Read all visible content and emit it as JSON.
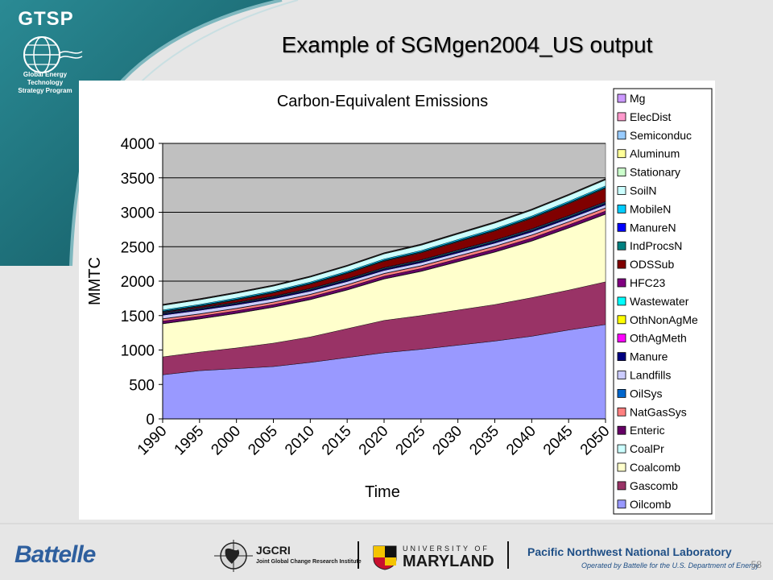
{
  "slide": {
    "title": "Example of SGMgen2004_US output",
    "page_number": "58"
  },
  "logo": {
    "name": "GTSP",
    "subtitle_line1": "Global Energy Technology",
    "subtitle_line2": "Strategy Program"
  },
  "footer": {
    "battelle": "Battelle",
    "jgcri": "JGCRI",
    "jgcri_sub": "Joint Global Change Research Institute",
    "umd_top": "UNIVERSITY OF",
    "umd_name": "MARYLAND",
    "pnnl": "Pacific Northwest National Laboratory",
    "pnnl_sub": "Operated by Battelle for the U.S. Department of Energy"
  },
  "colors": {
    "banner": "#1e6e78",
    "plot_background": "#c0c0c0"
  },
  "chart_data": {
    "type": "area",
    "stacked": true,
    "title": "Carbon-Equivalent Emissions",
    "xlabel": "Time",
    "ylabel": "MMTC",
    "ylim": [
      0,
      4000
    ],
    "yticks": [
      0,
      500,
      1000,
      1500,
      2000,
      2500,
      3000,
      3500,
      4000
    ],
    "grid": true,
    "legend_position": "right",
    "legend_order": "top-to-bottom reverse of stack",
    "x": [
      "1990",
      "1995",
      "2000",
      "2005",
      "2010",
      "2015",
      "2020",
      "2025",
      "2030",
      "2035",
      "2040",
      "2045",
      "2050"
    ],
    "series": [
      {
        "name": "Oilcomb",
        "color": "#9999ff",
        "values": [
          640,
          700,
          730,
          760,
          820,
          890,
          960,
          1010,
          1070,
          1130,
          1200,
          1290,
          1370
        ]
      },
      {
        "name": "Gascomb",
        "color": "#993366",
        "values": [
          260,
          270,
          300,
          340,
          370,
          420,
          470,
          490,
          510,
          530,
          560,
          580,
          620
        ]
      },
      {
        "name": "Coalcomb",
        "color": "#ffffcc",
        "values": [
          480,
          480,
          500,
          520,
          540,
          560,
          600,
          640,
          700,
          760,
          820,
          900,
          980
        ]
      },
      {
        "name": "CoalPr",
        "color": "#ccffff",
        "values": [
          5,
          5,
          5,
          5,
          5,
          5,
          5,
          5,
          5,
          5,
          5,
          5,
          5
        ]
      },
      {
        "name": "Enteric",
        "color": "#660066",
        "values": [
          35,
          35,
          35,
          35,
          36,
          36,
          37,
          38,
          39,
          40,
          41,
          42,
          43
        ]
      },
      {
        "name": "NatGasSys",
        "color": "#ff8080",
        "values": [
          30,
          31,
          32,
          33,
          34,
          35,
          36,
          37,
          38,
          39,
          40,
          41,
          42
        ]
      },
      {
        "name": "OilSys",
        "color": "#0066cc",
        "values": [
          5,
          5,
          5,
          5,
          5,
          5,
          5,
          5,
          5,
          5,
          5,
          5,
          5
        ]
      },
      {
        "name": "Landfills",
        "color": "#ccccff",
        "values": [
          50,
          50,
          48,
          45,
          44,
          43,
          42,
          42,
          42,
          42,
          42,
          42,
          42
        ]
      },
      {
        "name": "Manure",
        "color": "#000080",
        "values": [
          15,
          15,
          16,
          16,
          17,
          17,
          18,
          18,
          19,
          19,
          20,
          20,
          21
        ]
      },
      {
        "name": "OthAgMeth",
        "color": "#ff00ff",
        "values": [
          5,
          5,
          5,
          5,
          5,
          5,
          5,
          5,
          5,
          5,
          5,
          5,
          5
        ]
      },
      {
        "name": "OthNonAgMe",
        "color": "#ffff00",
        "values": [
          3,
          3,
          3,
          3,
          3,
          3,
          3,
          3,
          3,
          3,
          3,
          3,
          3
        ]
      },
      {
        "name": "Wastewater",
        "color": "#00ffff",
        "values": [
          8,
          8,
          8,
          8,
          9,
          9,
          9,
          9,
          10,
          10,
          10,
          10,
          10
        ]
      },
      {
        "name": "HFC23",
        "color": "#800080",
        "values": [
          10,
          10,
          8,
          8,
          8,
          8,
          9,
          9,
          9,
          10,
          10,
          10,
          11
        ]
      },
      {
        "name": "ODSSub",
        "color": "#800000",
        "values": [
          5,
          15,
          30,
          45,
          60,
          75,
          90,
          100,
          115,
          130,
          150,
          170,
          190
        ]
      },
      {
        "name": "IndProcsN",
        "color": "#008080",
        "values": [
          10,
          10,
          10,
          10,
          10,
          10,
          10,
          11,
          11,
          11,
          12,
          12,
          12
        ]
      },
      {
        "name": "ManureN",
        "color": "#0000ff",
        "values": [
          5,
          5,
          5,
          5,
          5,
          5,
          5,
          5,
          5,
          5,
          5,
          5,
          5
        ]
      },
      {
        "name": "MobileN",
        "color": "#00ccff",
        "values": [
          15,
          15,
          16,
          16,
          16,
          17,
          17,
          17,
          18,
          18,
          18,
          19,
          19
        ]
      },
      {
        "name": "SoilN",
        "color": "#ccffff",
        "values": [
          65,
          66,
          67,
          68,
          70,
          72,
          74,
          76,
          78,
          80,
          82,
          84,
          86
        ]
      },
      {
        "name": "Stationary",
        "color": "#ccffcc",
        "values": [
          5,
          5,
          5,
          5,
          5,
          5,
          6,
          6,
          6,
          6,
          6,
          6,
          7
        ]
      },
      {
        "name": "Aluminum",
        "color": "#ffff99",
        "values": [
          4,
          4,
          4,
          4,
          4,
          4,
          4,
          4,
          4,
          4,
          4,
          4,
          4
        ]
      },
      {
        "name": "Semiconduc",
        "color": "#99ccff",
        "values": [
          2,
          2,
          2,
          2,
          2,
          2,
          2,
          2,
          2,
          2,
          2,
          2,
          2
        ]
      },
      {
        "name": "ElecDist",
        "color": "#ff99cc",
        "values": [
          5,
          5,
          4,
          4,
          4,
          4,
          4,
          5,
          5,
          5,
          5,
          5,
          5
        ]
      },
      {
        "name": "Mg",
        "color": "#cc99ff",
        "values": [
          2,
          2,
          2,
          2,
          2,
          2,
          2,
          2,
          2,
          2,
          2,
          2,
          2
        ]
      }
    ]
  }
}
